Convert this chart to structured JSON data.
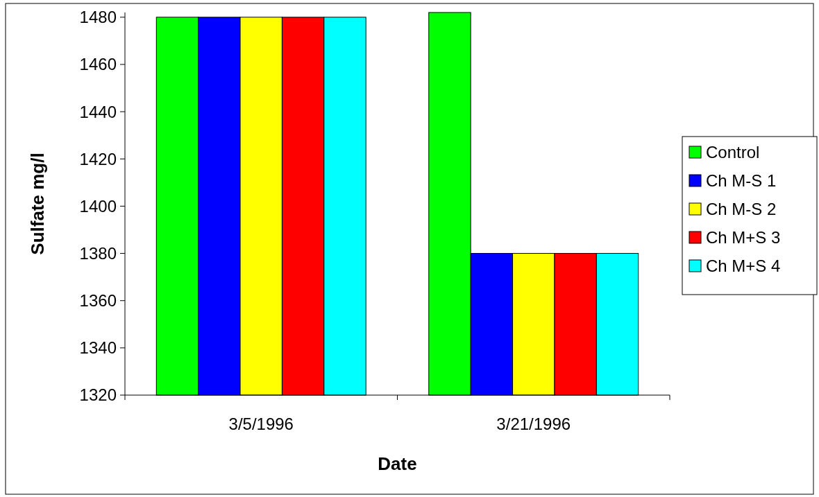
{
  "chart_data": {
    "type": "bar",
    "xlabel": "Date",
    "ylabel": "Sulfate mg/l",
    "categories": [
      "3/5/1996",
      "3/21/1996"
    ],
    "series": [
      {
        "name": "Control",
        "color": "#00ff00",
        "values": [
          1480,
          1482
        ]
      },
      {
        "name": "Ch M-S 1",
        "color": "#0000ff",
        "values": [
          1480,
          1380
        ]
      },
      {
        "name": "Ch M-S 2",
        "color": "#ffff00",
        "values": [
          1480,
          1380
        ]
      },
      {
        "name": "Ch M+S 3",
        "color": "#ff0000",
        "values": [
          1480,
          1380
        ]
      },
      {
        "name": "Ch M+S 4",
        "color": "#00ffff",
        "values": [
          1480,
          1380
        ]
      }
    ],
    "ylim": [
      1320,
      1482
    ],
    "yticks": [
      1320,
      1340,
      1360,
      1380,
      1400,
      1420,
      1440,
      1460,
      1480
    ],
    "grid": false,
    "legend": "right"
  }
}
